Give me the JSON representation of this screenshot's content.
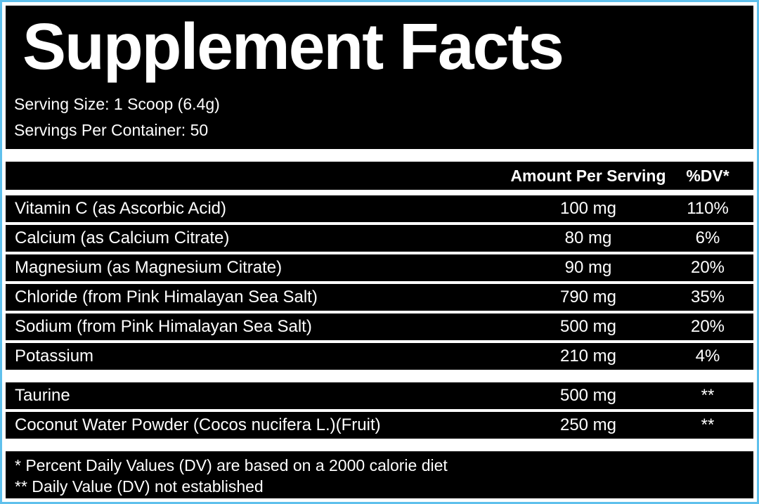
{
  "label": {
    "title": "Supplement Facts",
    "serving_size": "Serving Size: 1 Scoop (6.4g)",
    "servings_per_container": "Servings Per Container: 50",
    "columns": {
      "amount": "Amount Per Serving",
      "dv": "%DV*"
    },
    "sections": [
      {
        "rows": [
          {
            "name": "Vitamin C (as Ascorbic Acid)",
            "amount": "100 mg",
            "dv": "110%"
          },
          {
            "name": "Calcium (as Calcium Citrate)",
            "amount": "80 mg",
            "dv": "6%"
          },
          {
            "name": "Magnesium (as Magnesium Citrate)",
            "amount": "90 mg",
            "dv": "20%"
          },
          {
            "name": "Chloride (from Pink Himalayan Sea Salt)",
            "amount": "790 mg",
            "dv": "35%"
          },
          {
            "name": "Sodium (from Pink Himalayan Sea Salt)",
            "amount": "500 mg",
            "dv": "20%"
          },
          {
            "name": "Potassium",
            "amount": "210 mg",
            "dv": "4%"
          }
        ]
      },
      {
        "rows": [
          {
            "name": "Taurine",
            "amount": "500 mg",
            "dv": "**"
          },
          {
            "name": "Coconut Water Powder (Cocos nucifera L.)(Fruit)",
            "amount": "250 mg",
            "dv": "**"
          }
        ]
      }
    ],
    "footnotes": [
      "* Percent Daily Values (DV) are based on a 2000 calorie diet",
      "** Daily Value (DV) not established"
    ]
  },
  "colors": {
    "background": "#000000",
    "text": "#ffffff",
    "divider": "#ffffff",
    "frame_border": "#5fc0ec",
    "frame_margin": "#ffffff"
  }
}
